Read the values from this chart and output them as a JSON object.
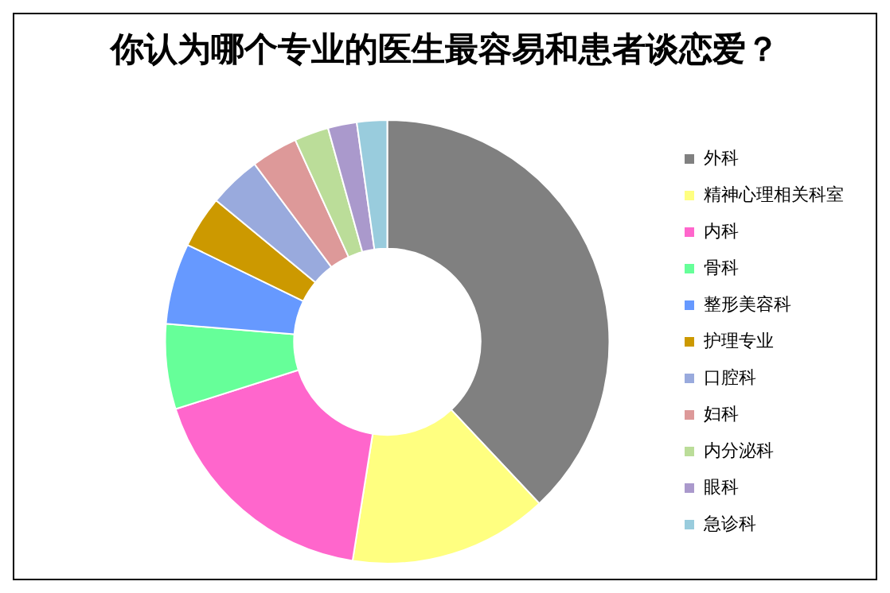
{
  "chart_data": {
    "type": "donut",
    "title": "你认为哪个专业的医生最容易和患者谈恋爱？",
    "categories": [
      "外科",
      "精神心理相关科室",
      "内科",
      "骨科",
      "整形美容科",
      "护理专业",
      "口腔科",
      "妇科",
      "内分泌科",
      "眼科",
      "急诊科"
    ],
    "values": [
      38.0,
      14.5,
      17.6,
      6.2,
      5.9,
      3.8,
      3.8,
      3.4,
      2.5,
      2.1,
      2.2
    ],
    "colors": [
      "#808080",
      "#ffff80",
      "#ff66cc",
      "#66ff99",
      "#6699ff",
      "#cc9900",
      "#99aadd",
      "#dd9999",
      "#bbdd99",
      "#aa99cc",
      "#99ccdd"
    ],
    "legend": "right"
  }
}
